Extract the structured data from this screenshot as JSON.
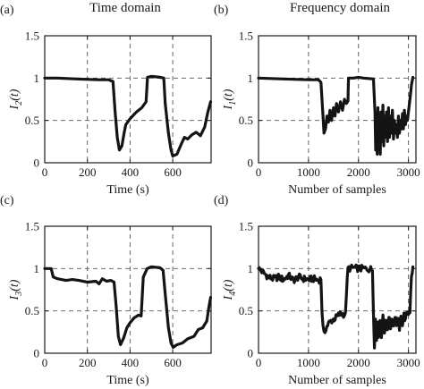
{
  "headers": {
    "left": "Time domain",
    "right": "Frequency domain"
  },
  "chart_data": [
    {
      "panel": "(a)",
      "type": "line",
      "ylabel": "I2(t)",
      "ylabel_main": "I",
      "ylabel_sub": "2",
      "ylabel_tail": "(t)",
      "xlabel": "Time (s)",
      "xlim": [
        0,
        780
      ],
      "ylim": [
        0,
        1.5
      ],
      "xticks": [
        0,
        200,
        400,
        600
      ],
      "yticks": [
        0,
        0.5,
        1,
        1.5
      ],
      "ytick_labels": [
        "0",
        "0.5",
        "1",
        "1.5"
      ],
      "grid": true,
      "noise": 0.0,
      "points": [
        [
          0,
          1.0
        ],
        [
          60,
          1.0
        ],
        [
          150,
          0.99
        ],
        [
          250,
          0.98
        ],
        [
          300,
          0.98
        ],
        [
          320,
          0.96
        ],
        [
          330,
          0.6
        ],
        [
          340,
          0.3
        ],
        [
          350,
          0.15
        ],
        [
          362,
          0.2
        ],
        [
          372,
          0.35
        ],
        [
          380,
          0.45
        ],
        [
          400,
          0.52
        ],
        [
          430,
          0.6
        ],
        [
          455,
          0.65
        ],
        [
          475,
          0.72
        ],
        [
          482,
          1.01
        ],
        [
          500,
          1.02
        ],
        [
          540,
          1.01
        ],
        [
          558,
          1.0
        ],
        [
          565,
          0.7
        ],
        [
          580,
          0.35
        ],
        [
          592,
          0.15
        ],
        [
          600,
          0.08
        ],
        [
          620,
          0.1
        ],
        [
          640,
          0.22
        ],
        [
          655,
          0.3
        ],
        [
          670,
          0.28
        ],
        [
          690,
          0.33
        ],
        [
          710,
          0.36
        ],
        [
          730,
          0.32
        ],
        [
          750,
          0.42
        ],
        [
          765,
          0.6
        ],
        [
          778,
          0.72
        ]
      ]
    },
    {
      "panel": "(b)",
      "type": "line",
      "ylabel": "I1(t)",
      "ylabel_main": "I",
      "ylabel_sub": "1",
      "ylabel_tail": "(t)",
      "xlabel": "Number of samples",
      "xlim": [
        0,
        3150
      ],
      "ylim": [
        0,
        1.5
      ],
      "xticks": [
        0,
        1000,
        2000,
        3000
      ],
      "yticks": [
        0,
        0.5,
        1,
        1.5
      ],
      "ytick_labels": [
        "0",
        "0.5",
        "1",
        "1.5"
      ],
      "grid": true,
      "noise": 0.0,
      "points": [
        [
          0,
          1.0
        ],
        [
          500,
          0.99
        ],
        [
          1000,
          0.98
        ],
        [
          1200,
          0.98
        ],
        [
          1250,
          0.95
        ],
        [
          1290,
          0.55
        ],
        [
          1310,
          0.35
        ],
        [
          1340,
          0.4
        ],
        [
          1370,
          0.55
        ],
        [
          1400,
          0.48
        ],
        [
          1430,
          0.62
        ],
        [
          1460,
          0.5
        ],
        [
          1500,
          0.65
        ],
        [
          1530,
          0.55
        ],
        [
          1560,
          0.7
        ],
        [
          1600,
          0.6
        ],
        [
          1640,
          0.72
        ],
        [
          1680,
          0.62
        ],
        [
          1720,
          0.75
        ],
        [
          1760,
          0.7
        ],
        [
          1790,
          0.73
        ],
        [
          1800,
          1.0
        ],
        [
          1900,
          1.0
        ],
        [
          2000,
          1.01
        ],
        [
          2100,
          1.0
        ],
        [
          2300,
          0.99
        ],
        [
          2330,
          0.6
        ],
        [
          2345,
          0.15
        ],
        [
          2360,
          0.55
        ],
        [
          2375,
          0.1
        ],
        [
          2390,
          0.65
        ],
        [
          2405,
          0.2
        ],
        [
          2420,
          0.55
        ],
        [
          2435,
          0.1
        ],
        [
          2450,
          0.6
        ],
        [
          2470,
          0.25
        ],
        [
          2490,
          0.68
        ],
        [
          2505,
          0.2
        ],
        [
          2520,
          0.55
        ],
        [
          2540,
          0.3
        ],
        [
          2560,
          0.6
        ],
        [
          2580,
          0.25
        ],
        [
          2600,
          0.65
        ],
        [
          2620,
          0.3
        ],
        [
          2640,
          0.55
        ],
        [
          2660,
          0.35
        ],
        [
          2680,
          0.62
        ],
        [
          2700,
          0.28
        ],
        [
          2720,
          0.5
        ],
        [
          2740,
          0.35
        ],
        [
          2760,
          0.45
        ],
        [
          2780,
          0.3
        ],
        [
          2800,
          0.55
        ],
        [
          2820,
          0.35
        ],
        [
          2840,
          0.5
        ],
        [
          2860,
          0.4
        ],
        [
          2880,
          0.58
        ],
        [
          2900,
          0.4
        ],
        [
          2920,
          0.62
        ],
        [
          2940,
          0.45
        ],
        [
          2960,
          0.55
        ],
        [
          2980,
          0.5
        ],
        [
          3000,
          0.6
        ],
        [
          3030,
          0.75
        ],
        [
          3060,
          0.92
        ],
        [
          3090,
          1.01
        ]
      ]
    },
    {
      "panel": "(c)",
      "type": "line",
      "ylabel": "I3(t)",
      "ylabel_main": "I",
      "ylabel_sub": "3",
      "ylabel_tail": "(t)",
      "xlabel": "Time (s)",
      "xlim": [
        0,
        780
      ],
      "ylim": [
        0,
        1.5
      ],
      "xticks": [
        0,
        200,
        400,
        600
      ],
      "yticks": [
        0,
        0.5,
        1,
        1.5
      ],
      "ytick_labels": [
        "0",
        "0.5",
        "1",
        "1.5"
      ],
      "grid": true,
      "noise": 0.0,
      "points": [
        [
          0,
          1.0
        ],
        [
          30,
          1.0
        ],
        [
          40,
          0.9
        ],
        [
          60,
          0.88
        ],
        [
          100,
          0.86
        ],
        [
          130,
          0.87
        ],
        [
          160,
          0.86
        ],
        [
          200,
          0.84
        ],
        [
          240,
          0.85
        ],
        [
          255,
          0.82
        ],
        [
          270,
          0.88
        ],
        [
          290,
          0.85
        ],
        [
          310,
          0.86
        ],
        [
          325,
          0.84
        ],
        [
          335,
          0.55
        ],
        [
          345,
          0.2
        ],
        [
          355,
          0.1
        ],
        [
          370,
          0.18
        ],
        [
          385,
          0.3
        ],
        [
          400,
          0.36
        ],
        [
          420,
          0.42
        ],
        [
          440,
          0.45
        ],
        [
          452,
          0.44
        ],
        [
          462,
          0.9
        ],
        [
          480,
          1.0
        ],
        [
          500,
          1.02
        ],
        [
          540,
          1.01
        ],
        [
          555,
          0.98
        ],
        [
          565,
          0.7
        ],
        [
          580,
          0.3
        ],
        [
          592,
          0.12
        ],
        [
          602,
          0.07
        ],
        [
          620,
          0.1
        ],
        [
          645,
          0.12
        ],
        [
          670,
          0.17
        ],
        [
          700,
          0.2
        ],
        [
          720,
          0.28
        ],
        [
          740,
          0.3
        ],
        [
          760,
          0.38
        ],
        [
          770,
          0.55
        ],
        [
          778,
          0.66
        ]
      ]
    },
    {
      "panel": "(d)",
      "type": "line",
      "ylabel": "I4(t)",
      "ylabel_main": "I",
      "ylabel_sub": "4",
      "ylabel_tail": "(t)",
      "xlabel": "Number of samples",
      "xlim": [
        0,
        3150
      ],
      "ylim": [
        0,
        1.5
      ],
      "xticks": [
        0,
        1000,
        2000,
        3000
      ],
      "yticks": [
        0,
        0.5,
        1,
        1.5
      ],
      "ytick_labels": [
        "0",
        "0.5",
        "1",
        "1.5"
      ],
      "grid": true,
      "noise": 0.04,
      "points": [
        [
          0,
          1.0
        ],
        [
          100,
          0.95
        ],
        [
          200,
          0.9
        ],
        [
          300,
          0.88
        ],
        [
          400,
          0.9
        ],
        [
          500,
          0.87
        ],
        [
          600,
          0.92
        ],
        [
          700,
          0.86
        ],
        [
          800,
          0.9
        ],
        [
          900,
          0.88
        ],
        [
          1000,
          0.87
        ],
        [
          1100,
          0.88
        ],
        [
          1200,
          0.86
        ],
        [
          1250,
          0.88
        ],
        [
          1270,
          0.5
        ],
        [
          1290,
          0.3
        ],
        [
          1310,
          0.22
        ],
        [
          1350,
          0.3
        ],
        [
          1400,
          0.35
        ],
        [
          1450,
          0.38
        ],
        [
          1500,
          0.4
        ],
        [
          1550,
          0.42
        ],
        [
          1600,
          0.45
        ],
        [
          1650,
          0.47
        ],
        [
          1700,
          0.46
        ],
        [
          1740,
          0.45
        ],
        [
          1760,
          0.72
        ],
        [
          1790,
          1.0
        ],
        [
          1900,
          1.01
        ],
        [
          2000,
          1.0
        ],
        [
          2100,
          1.0
        ],
        [
          2280,
          0.99
        ],
        [
          2300,
          0.5
        ],
        [
          2320,
          0.1
        ],
        [
          2340,
          0.4
        ],
        [
          2360,
          0.15
        ],
        [
          2380,
          0.38
        ],
        [
          2400,
          0.2
        ],
        [
          2430,
          0.42
        ],
        [
          2460,
          0.22
        ],
        [
          2490,
          0.45
        ],
        [
          2520,
          0.25
        ],
        [
          2550,
          0.4
        ],
        [
          2580,
          0.28
        ],
        [
          2610,
          0.45
        ],
        [
          2640,
          0.3
        ],
        [
          2670,
          0.4
        ],
        [
          2700,
          0.32
        ],
        [
          2730,
          0.45
        ],
        [
          2760,
          0.35
        ],
        [
          2790,
          0.38
        ],
        [
          2820,
          0.3
        ],
        [
          2850,
          0.42
        ],
        [
          2880,
          0.35
        ],
        [
          2910,
          0.45
        ],
        [
          2940,
          0.38
        ],
        [
          2970,
          0.5
        ],
        [
          3000,
          0.48
        ],
        [
          3030,
          0.5
        ],
        [
          3060,
          0.9
        ],
        [
          3090,
          1.02
        ]
      ]
    }
  ]
}
